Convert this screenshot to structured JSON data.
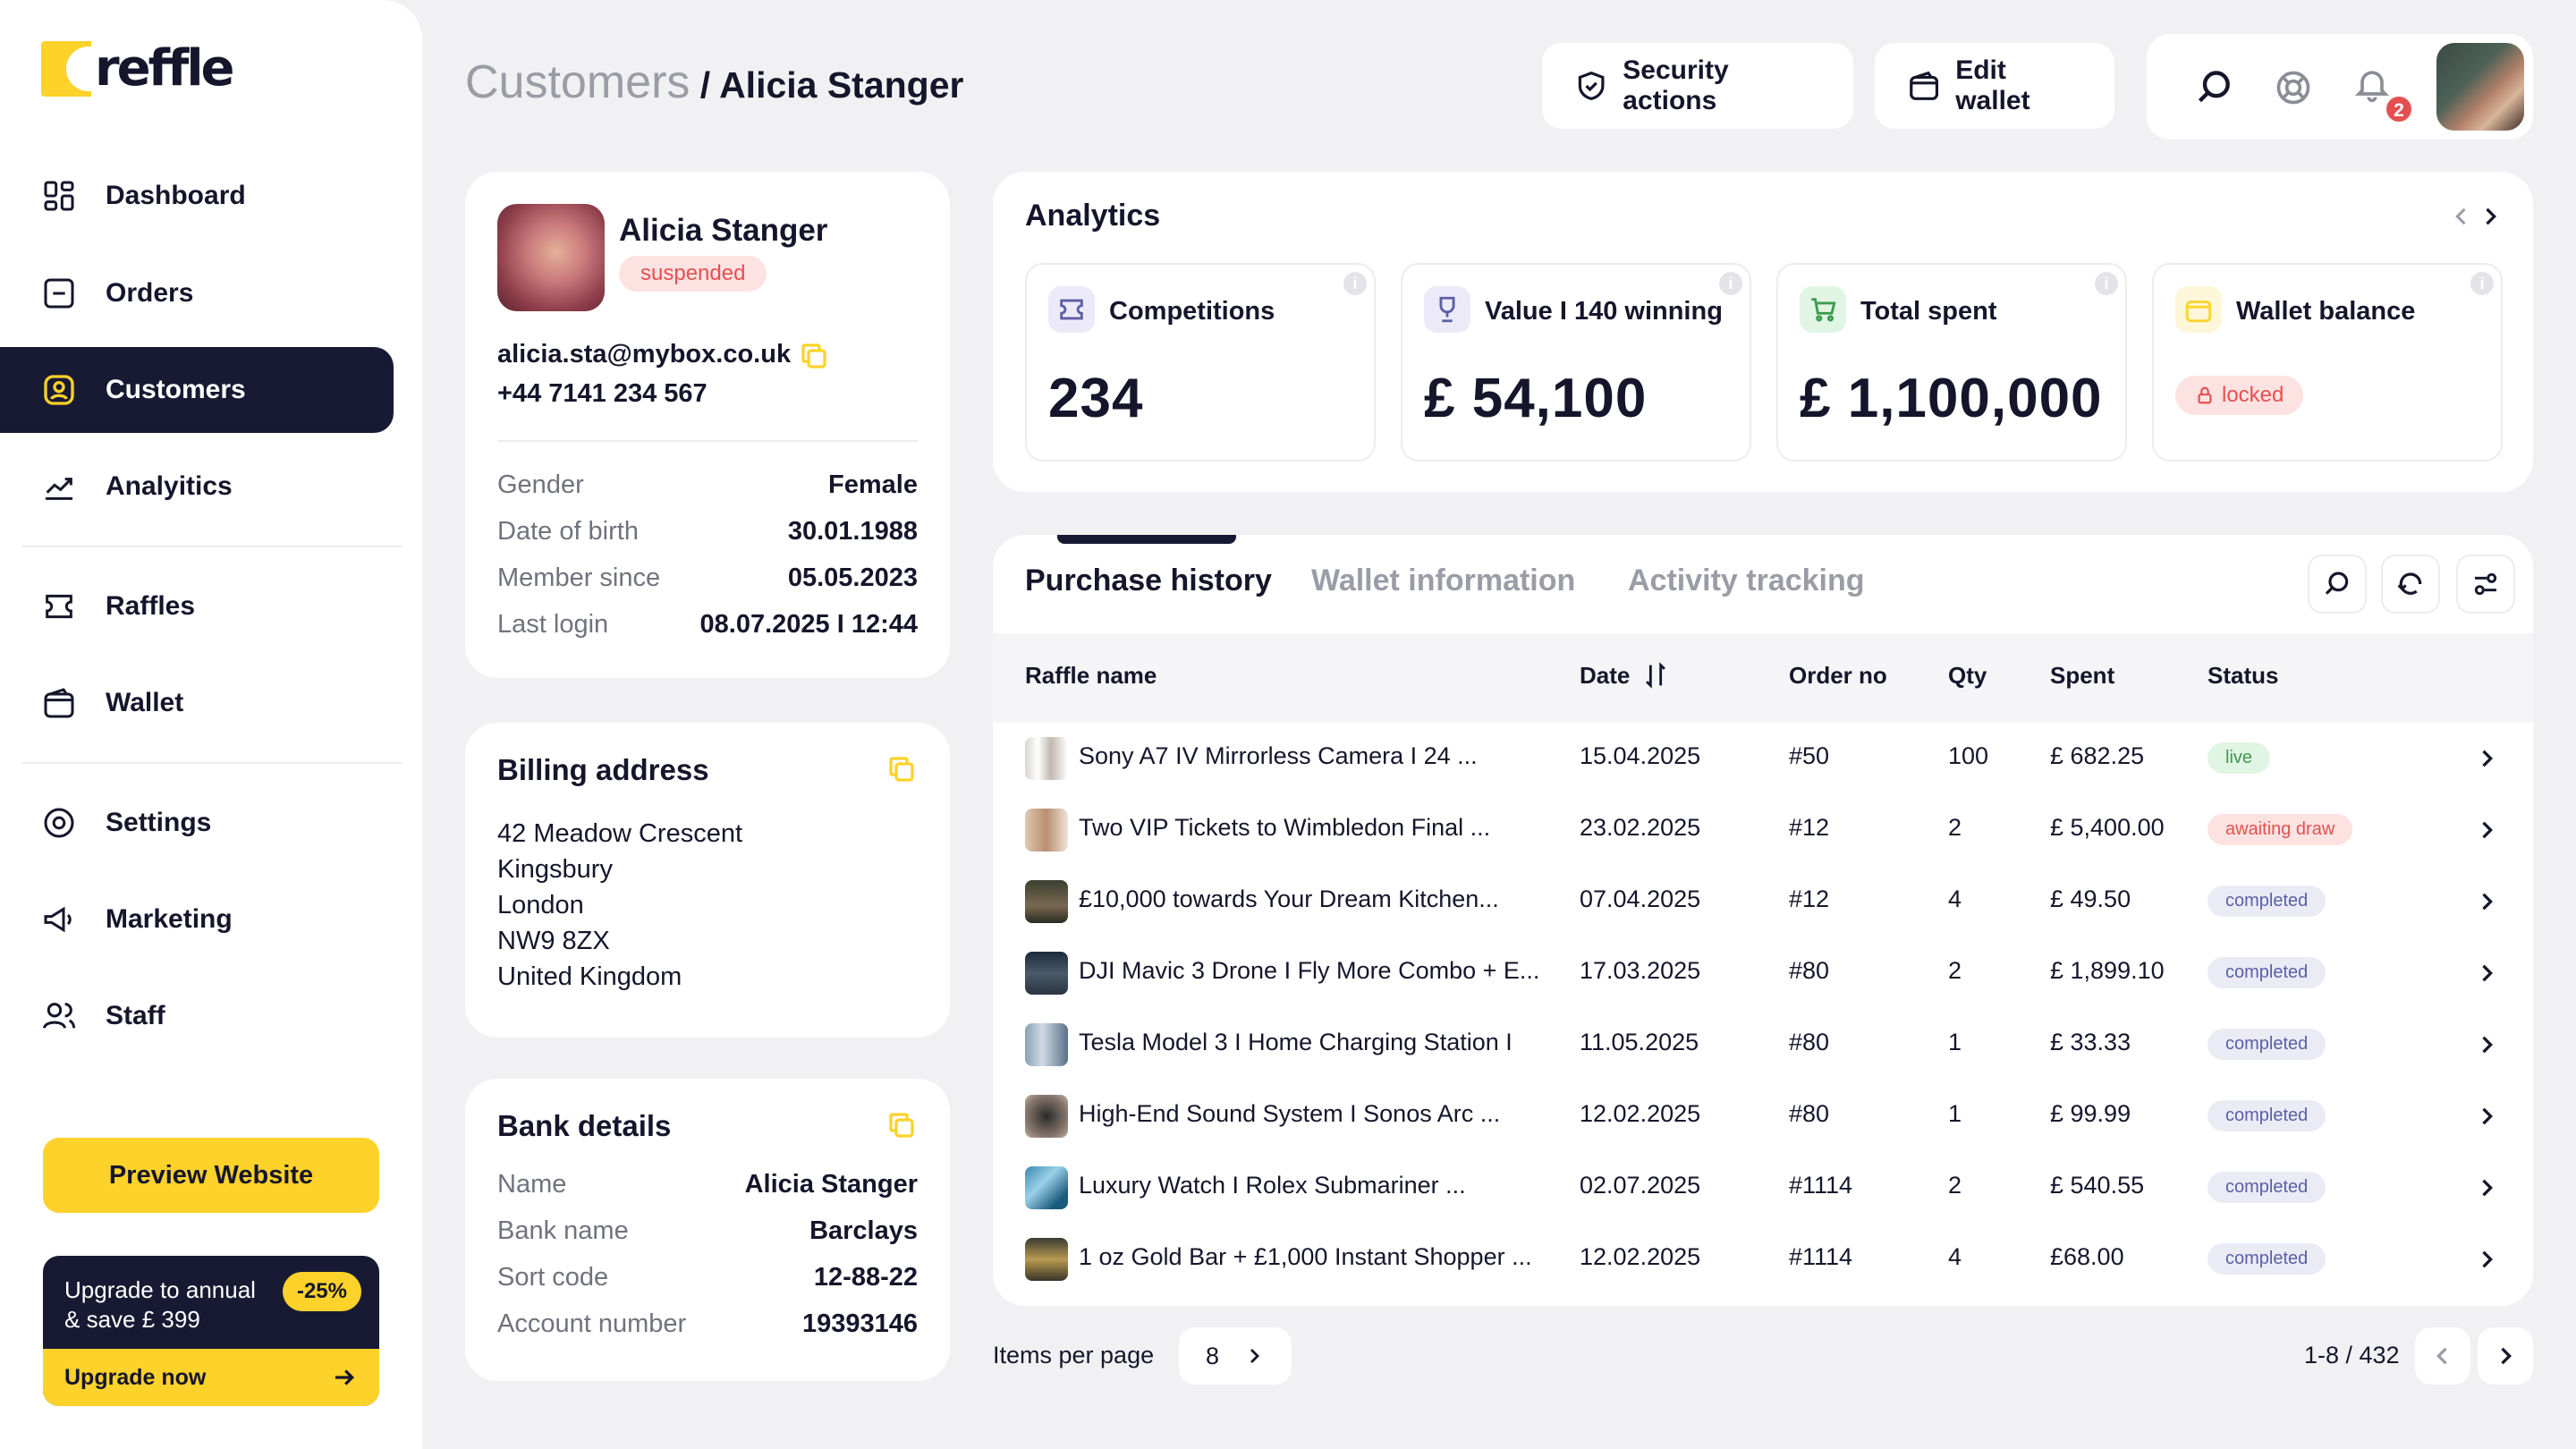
{
  "app": {
    "logo_text": "reffle"
  },
  "nav": [
    {
      "label": "Dashboard",
      "icon": "dashboard-icon"
    },
    {
      "label": "Orders",
      "icon": "orders-icon"
    },
    {
      "label": "Customers",
      "icon": "customers-icon",
      "active": true
    },
    {
      "label": "Analyitics",
      "icon": "analytics-icon"
    },
    {
      "label": "Raffles",
      "icon": "raffles-icon"
    },
    {
      "label": "Wallet",
      "icon": "wallet-icon"
    },
    {
      "label": "Settings",
      "icon": "settings-icon"
    },
    {
      "label": "Marketing",
      "icon": "marketing-icon"
    },
    {
      "label": "Staff",
      "icon": "staff-icon"
    }
  ],
  "sidebar": {
    "preview_label": "Preview Website",
    "upgrade_line1": "Upgrade to annual",
    "upgrade_line2": "& save £ 399",
    "upgrade_badge": "-25%",
    "upgrade_now": "Upgrade now"
  },
  "header": {
    "breadcrumb_parent": "Customers",
    "breadcrumb_sep": " / ",
    "breadcrumb_current": "Alicia Stanger",
    "security_label": "Security actions",
    "edit_wallet_label": "Edit wallet",
    "notification_count": "2"
  },
  "profile": {
    "name": "Alicia Stanger",
    "status": "suspended",
    "email": "alicia.sta@mybox.co.uk",
    "phone": "+44 7141 234 567",
    "fields": [
      {
        "label": "Gender",
        "value": "Female"
      },
      {
        "label": "Date of birth",
        "value": "30.01.1988"
      },
      {
        "label": "Member since",
        "value": "05.05.2023"
      },
      {
        "label": "Last login",
        "value": "08.07.2025 I 12:44"
      }
    ]
  },
  "billing": {
    "title": "Billing address",
    "lines": [
      "42 Meadow Crescent",
      "Kingsbury",
      "London",
      "NW9 8ZX",
      "United Kingdom"
    ]
  },
  "bank": {
    "title": "Bank details",
    "fields": [
      {
        "label": "Name",
        "value": "Alicia Stanger"
      },
      {
        "label": "Bank name",
        "value": "Barclays"
      },
      {
        "label": "Sort code",
        "value": "12-88-22"
      },
      {
        "label": "Account number",
        "value": "19393146"
      }
    ]
  },
  "analytics": {
    "title": "Analytics",
    "stats": [
      {
        "label": "Competitions",
        "value": "234"
      },
      {
        "label": "Value I 140 winning",
        "value": "£ 54,100"
      },
      {
        "label": "Total spent",
        "value": "£ 1,100,000"
      },
      {
        "label": "Wallet balance",
        "value": "locked"
      }
    ]
  },
  "tabs": [
    "Purchase history",
    "Wallet information",
    "Activity tracking"
  ],
  "table": {
    "headers": [
      "Raffle name",
      "Date",
      "Order no",
      "Qty",
      "Spent",
      "Status"
    ],
    "rows": [
      {
        "name": "Sony A7 IV Mirrorless Camera I 24 ...",
        "date": "15.04.2025",
        "order": "#50",
        "qty": "100",
        "spent": "£ 682.25",
        "status": "live"
      },
      {
        "name": "Two VIP Tickets to Wimbledon Final ...",
        "date": "23.02.2025",
        "order": "#12",
        "qty": "2",
        "spent": "£ 5,400.00",
        "status": "awaiting draw"
      },
      {
        "name": "£10,000 towards Your Dream Kitchen...",
        "date": "07.04.2025",
        "order": "#12",
        "qty": "4",
        "spent": "£ 49.50",
        "status": "completed"
      },
      {
        "name": "DJI Mavic 3 Drone I Fly More Combo + E...",
        "date": "17.03.2025",
        "order": "#80",
        "qty": "2",
        "spent": "£ 1,899.10",
        "status": "completed"
      },
      {
        "name": "Tesla Model 3 I Home Charging Station I",
        "date": "11.05.2025",
        "order": "#80",
        "qty": "1",
        "spent": "£ 33.33",
        "status": "completed"
      },
      {
        "name": "High-End Sound System I Sonos Arc ...",
        "date": "12.02.2025",
        "order": "#80",
        "qty": "1",
        "spent": "£ 99.99",
        "status": "completed"
      },
      {
        "name": "Luxury Watch I Rolex Submariner ...",
        "date": "02.07.2025",
        "order": "#1114",
        "qty": "2",
        "spent": "£ 540.55",
        "status": "completed"
      },
      {
        "name": "1 oz Gold Bar + £1,000 Instant Shopper ...",
        "date": "12.02.2025",
        "order": "#1114",
        "qty": "4",
        "spent": "£68.00",
        "status": "completed"
      }
    ]
  },
  "pagination": {
    "items_label": "Items per page",
    "per_page": "8",
    "range": "1-8 / 432"
  },
  "colors": {
    "accent": "#fdd22a",
    "dark": "#181a33",
    "danger": "#e45050"
  }
}
